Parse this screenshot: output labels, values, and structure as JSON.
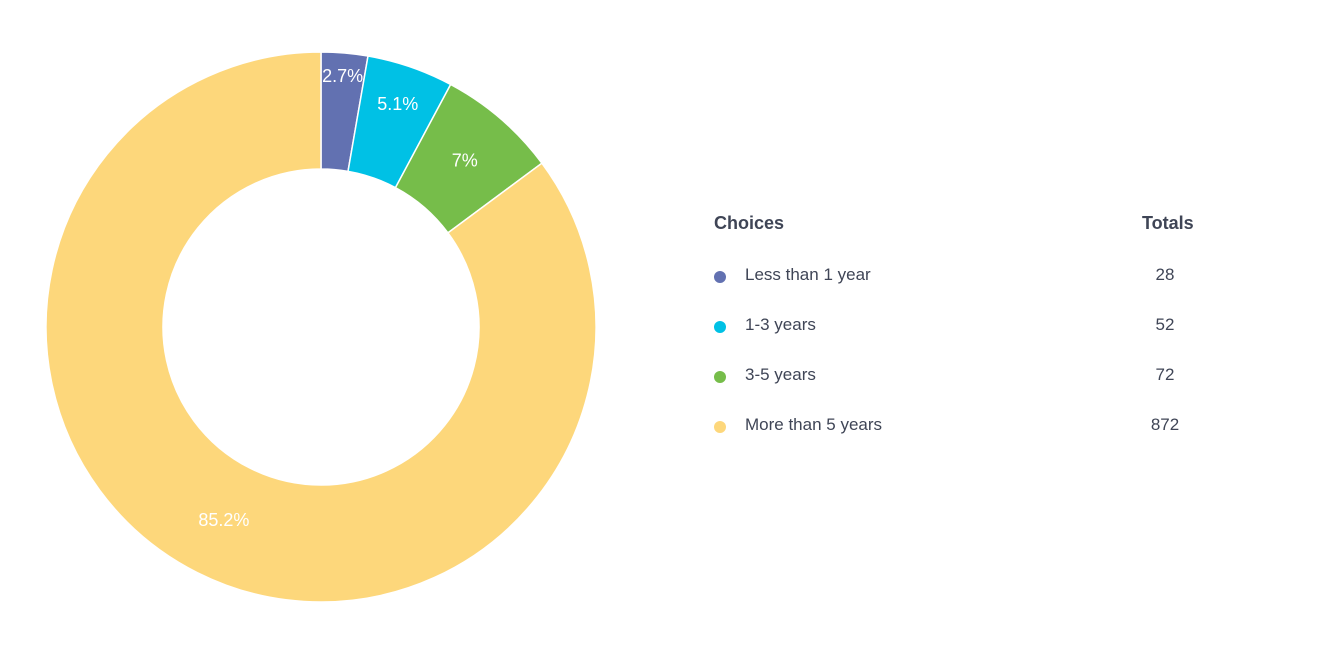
{
  "legend": {
    "choices_header": "Choices",
    "totals_header": "Totals"
  },
  "chart_data": {
    "type": "pie",
    "style": "donut",
    "categories": [
      "Less than 1 year",
      "1-3 years",
      "3-5 years",
      "More than 5 years"
    ],
    "values": [
      28,
      52,
      72,
      872
    ],
    "percent_labels": [
      "2.7%",
      "5.1%",
      "7%",
      "85.2%"
    ],
    "colors": [
      "#6271b1",
      "#00c1e5",
      "#76bd4a",
      "#fdd77b"
    ],
    "legend_position": "right"
  }
}
